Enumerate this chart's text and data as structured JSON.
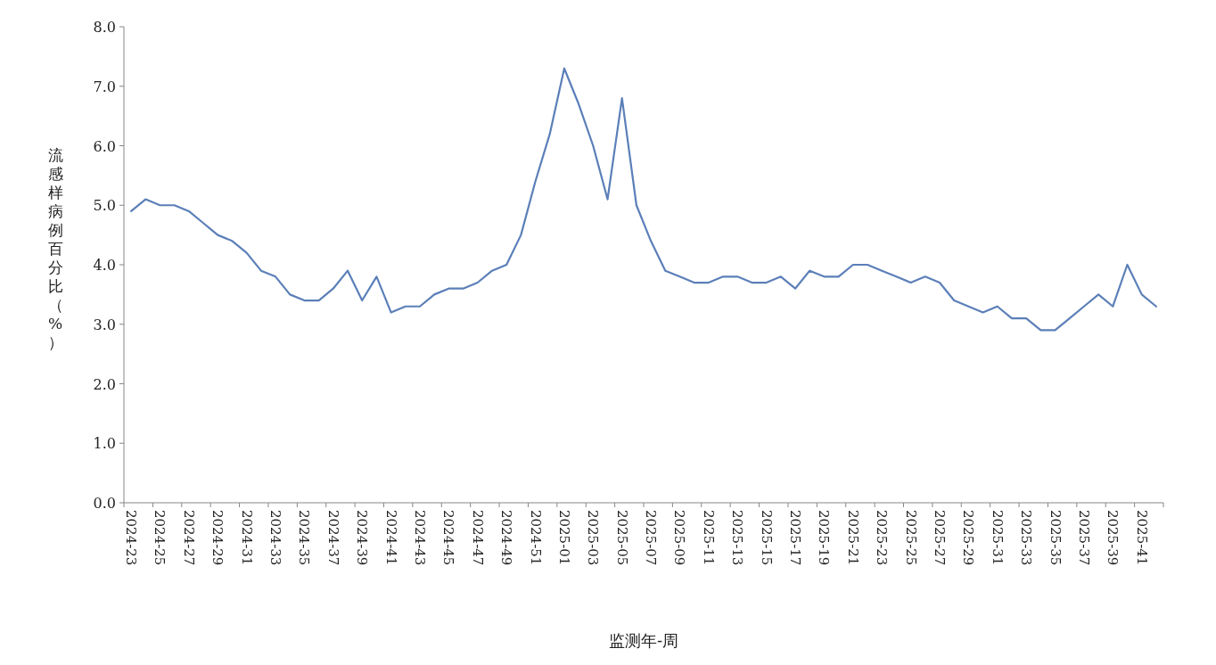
{
  "chart_data": {
    "type": "line",
    "xlabel": "监测年-周",
    "ylabel": "流感样病例百分比（%）",
    "categories": [
      "2024-23",
      null,
      "2024-25",
      null,
      "2024-27",
      null,
      "2024-29",
      null,
      "2024-31",
      null,
      "2024-33",
      null,
      "2024-35",
      null,
      "2024-37",
      null,
      "2024-39",
      null,
      "2024-41",
      null,
      "2024-43",
      null,
      "2024-45",
      null,
      "2024-47",
      null,
      "2024-49",
      null,
      "2024-51",
      null,
      "2025-01",
      null,
      "2025-03",
      null,
      "2025-05",
      null,
      "2025-07",
      null,
      "2025-09",
      null,
      "2025-11",
      null,
      "2025-13",
      null,
      "2025-15",
      null,
      "2025-17",
      null,
      "2025-19",
      null,
      "2025-21",
      null,
      "2025-23",
      null,
      "2025-25",
      null,
      "2025-27",
      null,
      "2025-29",
      null,
      "2025-31",
      null,
      "2025-33",
      null,
      "2025-35",
      null,
      "2025-37",
      null,
      "2025-39",
      null,
      "2025-41",
      null
    ],
    "series": [
      {
        "color": "#5b7fb8",
        "values": [
          4.9,
          5.1,
          5.0,
          5.0,
          4.9,
          4.7,
          4.5,
          4.4,
          4.2,
          3.9,
          3.8,
          3.5,
          3.4,
          3.4,
          3.6,
          3.9,
          3.4,
          3.8,
          3.2,
          3.3,
          3.3,
          3.5,
          3.6,
          3.6,
          3.7,
          3.9,
          4.0,
          4.5,
          5.4,
          6.2,
          7.3,
          6.7,
          6.0,
          5.1,
          6.8,
          5.0,
          4.4,
          3.9,
          3.8,
          3.7,
          3.7,
          3.8,
          3.8,
          3.7,
          3.7,
          3.8,
          3.6,
          3.9,
          3.8,
          3.8,
          4.0,
          4.0,
          3.9,
          3.8,
          3.7,
          3.8,
          3.7,
          3.4,
          3.3,
          3.2,
          3.3,
          3.1,
          3.1,
          2.9,
          2.9,
          3.1,
          3.3,
          3.5,
          3.3,
          4.0,
          3.5,
          3.3
        ]
      }
    ],
    "ylim": [
      0,
      8
    ],
    "yticks": [
      {
        "value": 0,
        "label": "0.0"
      },
      {
        "value": 1,
        "label": "1.0"
      },
      {
        "value": 2,
        "label": "2.0"
      },
      {
        "value": 3,
        "label": "3.0"
      },
      {
        "value": 4,
        "label": "4.0"
      },
      {
        "value": 5,
        "label": "5.0"
      },
      {
        "value": 6,
        "label": "6.0"
      },
      {
        "value": 7,
        "label": "7.0"
      },
      {
        "value": 8,
        "label": "8.0"
      }
    ],
    "grid": false,
    "line_style": "solid"
  }
}
